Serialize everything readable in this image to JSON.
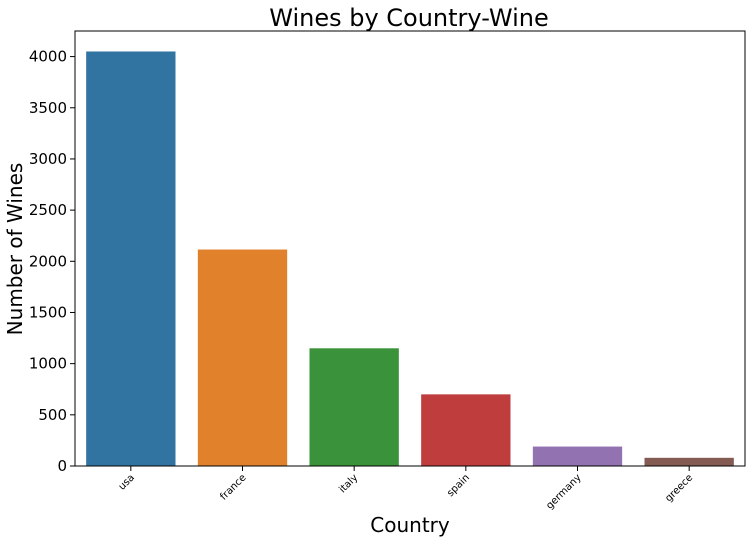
{
  "chart_data": {
    "type": "bar",
    "title": "Wines by Country-Wine",
    "xlabel": "Country",
    "ylabel": "Number of Wines",
    "categories": [
      "usa",
      "france",
      "italy",
      "spain",
      "germany",
      "greece"
    ],
    "values": [
      4050,
      2115,
      1150,
      700,
      190,
      80
    ],
    "colors": [
      "#3274a1",
      "#e1812c",
      "#3a923a",
      "#c03d3e",
      "#9372b2",
      "#845b53"
    ],
    "yticks": [
      0,
      500,
      1000,
      1500,
      2000,
      2500,
      3000,
      3500,
      4000
    ],
    "ylim": [
      0,
      4250
    ],
    "grid": false,
    "legend": "none"
  }
}
